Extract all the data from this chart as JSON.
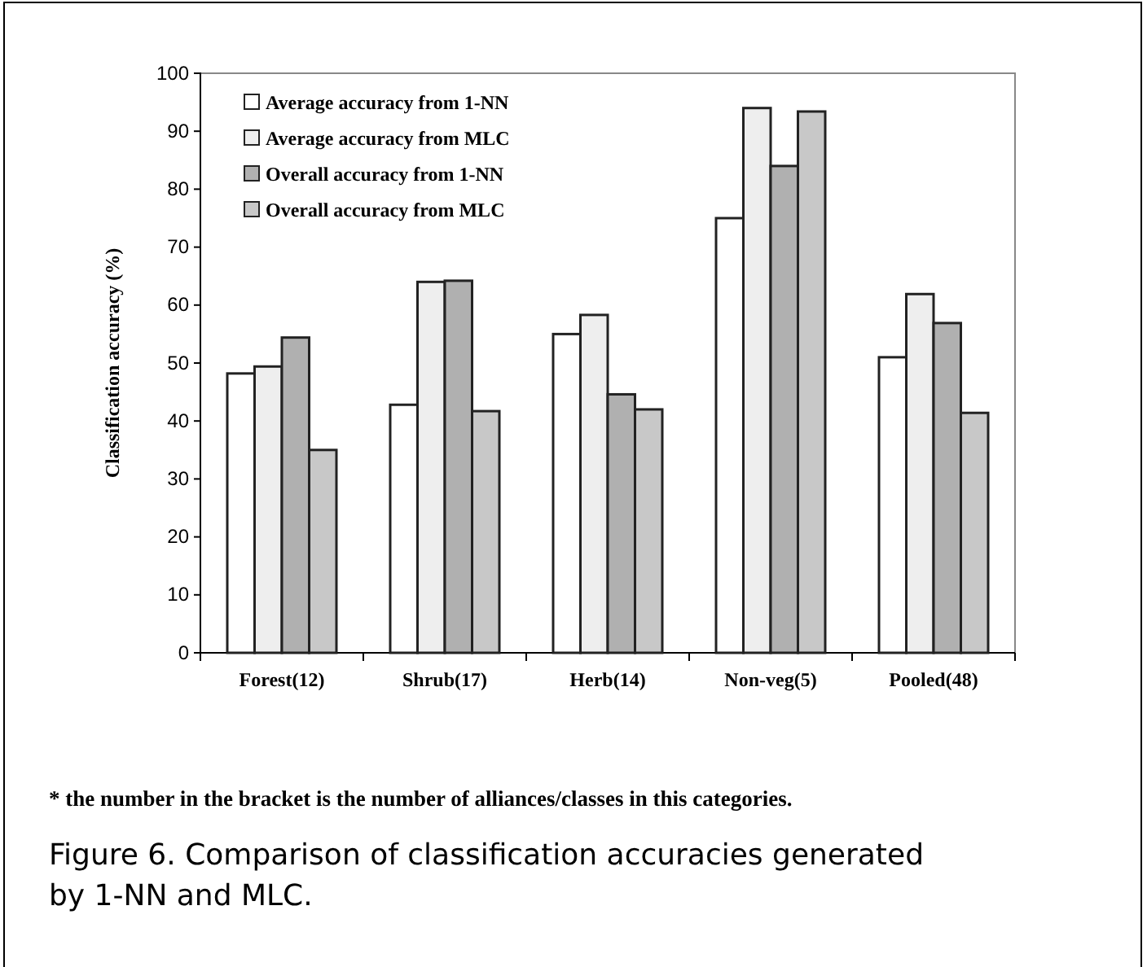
{
  "chart_data": {
    "type": "bar",
    "ylabel": "Classification accuracy (%)",
    "categories": [
      "Forest(12)",
      "Shrub(17)",
      "Herb(14)",
      "Non-veg(5)",
      "Pooled(48)"
    ],
    "series": [
      {
        "name": "Average accuracy from 1-NN",
        "color": "#ffffff",
        "values": [
          48.2,
          42.8,
          55,
          75,
          51
        ]
      },
      {
        "name": "Average accuracy from MLC",
        "color": "#eeeeee",
        "values": [
          49.4,
          64,
          58.3,
          94,
          61.9
        ]
      },
      {
        "name": "Overall accuracy from 1-NN",
        "color": "#b0b0b0",
        "values": [
          54.4,
          64.2,
          44.6,
          84,
          56.9
        ]
      },
      {
        "name": "Overall accuracy from MLC",
        "color": "#c8c8c8",
        "values": [
          35,
          41.7,
          42,
          93.4,
          41.4
        ]
      }
    ],
    "ylim": [
      0,
      100
    ],
    "yticks": [
      0,
      10,
      20,
      30,
      40,
      50,
      60,
      70,
      80,
      90,
      100
    ],
    "grid": false,
    "legend": "top left",
    "annotations": [
      "* the number in the bracket is the number of alliances/classes in this categories.",
      "Figure 6. Comparison of classification accuracies generated by 1-NN and MLC."
    ]
  }
}
